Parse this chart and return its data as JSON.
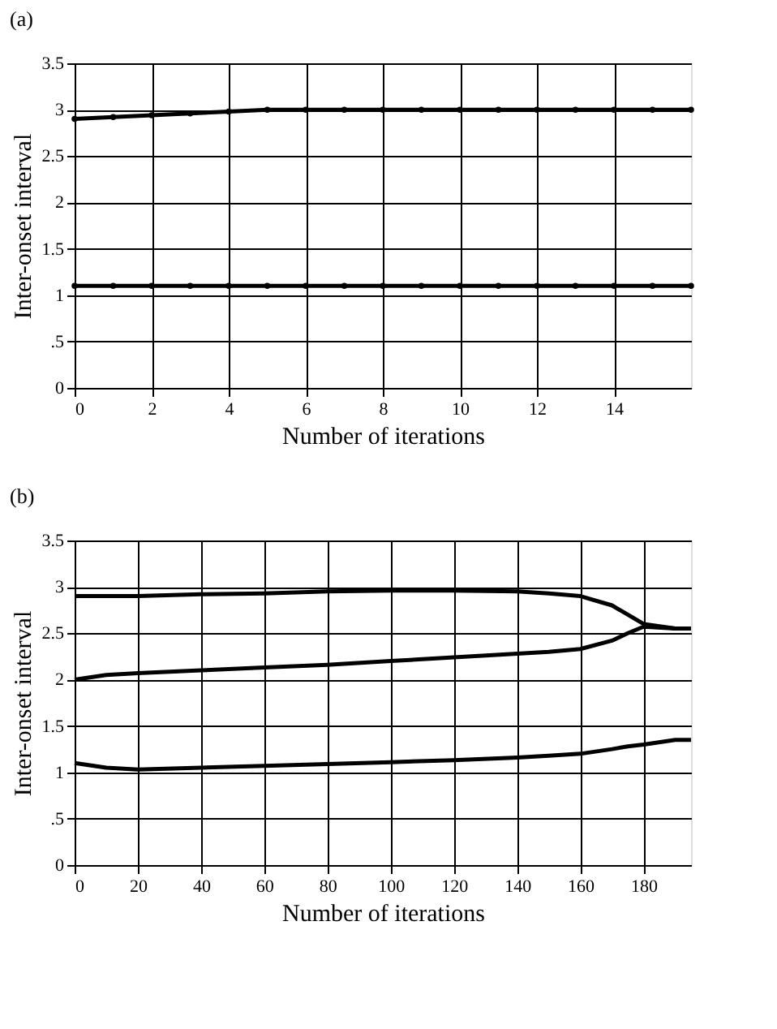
{
  "chart_data": [
    {
      "type": "line",
      "title": "(a)",
      "xlabel": "Number of iterations",
      "ylabel": "Inter-onset interval",
      "x": [
        0,
        1,
        2,
        3,
        4,
        5,
        6,
        7,
        8,
        9,
        10,
        11,
        12,
        13,
        14,
        15,
        16
      ],
      "series": [
        {
          "color": "#000000",
          "values": [
            2.9,
            2.92,
            2.94,
            2.96,
            2.98,
            3.0,
            3.0,
            3.0,
            3.0,
            3.0,
            3.0,
            3.0,
            3.0,
            3.0,
            3.0,
            3.0,
            3.0
          ]
        },
        {
          "color": "#000000",
          "values": [
            1.1,
            1.1,
            1.1,
            1.1,
            1.1,
            1.1,
            1.1,
            1.1,
            1.1,
            1.1,
            1.1,
            1.1,
            1.1,
            1.1,
            1.1,
            1.1,
            1.1
          ]
        }
      ],
      "xlim": [
        0,
        16
      ],
      "xticks": [
        0,
        2,
        4,
        6,
        8,
        10,
        12,
        14
      ],
      "ylim": [
        0,
        3.5
      ],
      "yticks": [
        0,
        {
          "value": 0.5,
          "label": ".5"
        },
        1,
        1.5,
        2,
        2.5,
        3,
        3.5
      ],
      "grid": true,
      "marker": "circle",
      "line_style": "solid"
    },
    {
      "type": "line",
      "title": "(b)",
      "xlabel": "Number of iterations",
      "ylabel": "Inter-onset interval",
      "x": [
        0,
        10,
        20,
        40,
        60,
        80,
        100,
        120,
        140,
        150,
        160,
        170,
        175,
        180,
        190,
        195
      ],
      "series": [
        {
          "color": "#000000",
          "values": [
            2.9,
            2.9,
            2.9,
            2.92,
            2.93,
            2.95,
            2.96,
            2.96,
            2.95,
            2.93,
            2.9,
            2.8,
            2.7,
            2.6,
            2.55,
            2.55
          ]
        },
        {
          "color": "#000000",
          "values": [
            2.0,
            2.05,
            2.07,
            2.1,
            2.13,
            2.16,
            2.2,
            2.24,
            2.28,
            2.3,
            2.33,
            2.42,
            2.5,
            2.57,
            2.55,
            2.55
          ]
        },
        {
          "color": "#000000",
          "values": [
            1.1,
            1.05,
            1.03,
            1.05,
            1.07,
            1.09,
            1.11,
            1.13,
            1.16,
            1.18,
            1.2,
            1.25,
            1.28,
            1.3,
            1.35,
            1.35
          ]
        }
      ],
      "xlim": [
        0,
        195
      ],
      "xticks": [
        0,
        20,
        40,
        60,
        80,
        100,
        120,
        140,
        160,
        180
      ],
      "ylim": [
        0,
        3.5
      ],
      "yticks": [
        0,
        {
          "value": 0.5,
          "label": ".5"
        },
        1,
        1.5,
        2,
        2.5,
        3,
        3.5
      ],
      "grid": true,
      "marker": "none",
      "line_style": "solid"
    }
  ]
}
